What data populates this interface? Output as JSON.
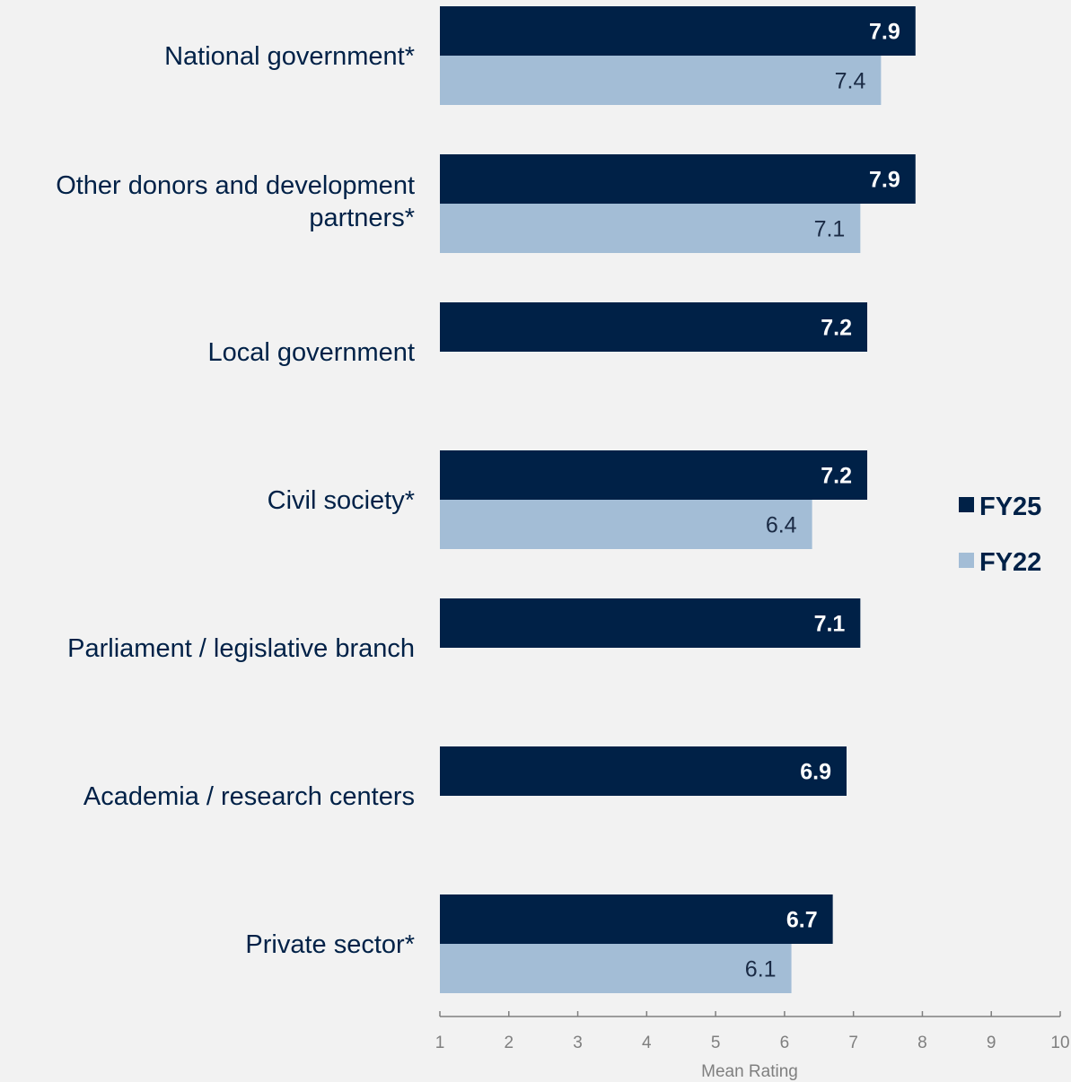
{
  "chart_data": {
    "type": "bar",
    "orientation": "horizontal",
    "categories": [
      [
        "National government*"
      ],
      [
        "Other donors and development",
        "partners*"
      ],
      [
        "Local government"
      ],
      [
        "Civil society*"
      ],
      [
        "Parliament / legislative branch"
      ],
      [
        "Academia / research centers"
      ],
      [
        "Private sector*"
      ]
    ],
    "series": [
      {
        "name": "FY25",
        "color": "#002147",
        "values": [
          7.9,
          7.9,
          7.2,
          7.2,
          7.1,
          6.9,
          6.7
        ]
      },
      {
        "name": "FY22",
        "color": "#a3bdd6",
        "values": [
          7.4,
          7.1,
          null,
          6.4,
          null,
          null,
          6.1
        ]
      }
    ],
    "xlabel": "Mean Rating",
    "xlim": [
      1,
      10
    ],
    "xticks": [
      1,
      2,
      3,
      4,
      5,
      6,
      7,
      8,
      9,
      10
    ],
    "grid": false,
    "legend_position": "right"
  }
}
